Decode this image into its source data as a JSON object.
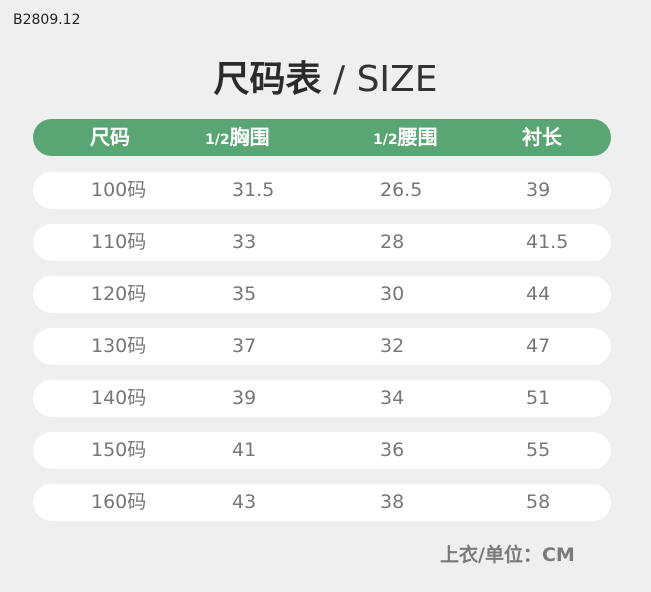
{
  "product_code": "B2809.12",
  "title": {
    "zh": "尺码表",
    "separator": " / ",
    "en": "SIZE"
  },
  "header": {
    "size": "尺码",
    "chest_prefix": "1/2",
    "chest": "胸围",
    "waist_prefix": "1/2",
    "waist": "腰围",
    "length": "衬长"
  },
  "rows": [
    [
      "100码",
      "31.5",
      "26.5",
      "39"
    ],
    [
      "110码",
      "33",
      "28",
      "41.5"
    ],
    [
      "120码",
      "35",
      "30",
      "44"
    ],
    [
      "130码",
      "37",
      "32",
      "47"
    ],
    [
      "140码",
      "39",
      "34",
      "51"
    ],
    [
      "150码",
      "41",
      "36",
      "55"
    ],
    [
      "160码",
      "43",
      "38",
      "58"
    ]
  ],
  "footer": "上衣/单位：CM",
  "colors": {
    "header_green": "#5aa574",
    "background": "#efefef",
    "row": "#ffffff"
  }
}
